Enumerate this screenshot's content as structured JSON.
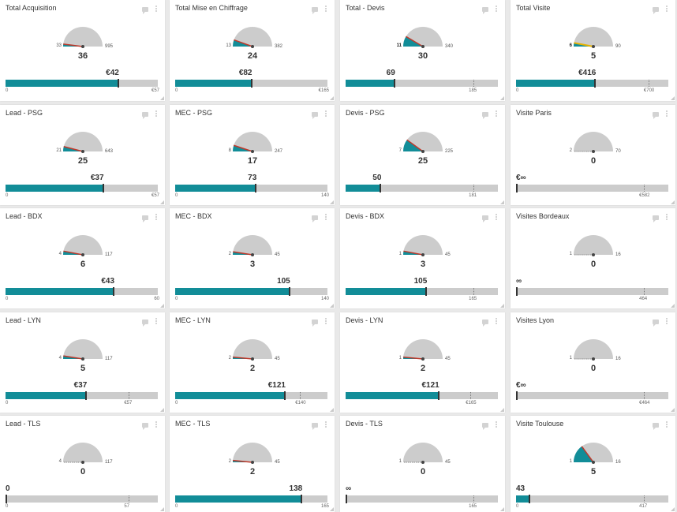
{
  "colors": {
    "teal": "#128d98",
    "gauge_grey": "#cccccc",
    "needle_red": "#c0392b",
    "yellow": "#e8b200"
  },
  "cards": [
    {
      "title": "Total Acquisition",
      "gauge": {
        "min": "33",
        "max": "995",
        "value": "36",
        "level": 0.04,
        "needle": "red"
      },
      "bar": {
        "value": "€42",
        "min": "0",
        "max": "€57",
        "fill": 0.74
      }
    },
    {
      "title": "Total Mise en Chiffrage",
      "gauge": {
        "min": "13",
        "max": "382",
        "value": "24",
        "level": 0.11,
        "needle": "red"
      },
      "bar": {
        "value": "€82",
        "min": "0",
        "max": "€165",
        "fill": 0.5
      }
    },
    {
      "title": "Total - Devis",
      "gauge": {
        "min": "11",
        "max": "340",
        "value": "30",
        "level": 0.17,
        "needle": "red",
        "min_bold": true
      },
      "bar": {
        "value": "69",
        "min": "",
        "max": "185",
        "fill": 0.32,
        "target": 0.84
      }
    },
    {
      "title": "Total Visite",
      "gauge": {
        "min": "6",
        "max": "90",
        "value": "5",
        "level": 0.06,
        "needle": "yellow",
        "min_bold": true
      },
      "bar": {
        "value": "€416",
        "min": "0",
        "max": "€700",
        "fill": 0.52,
        "target": 0.87
      }
    },
    {
      "title": "Lead - PSG",
      "gauge": {
        "min": "21",
        "max": "643",
        "value": "25",
        "level": 0.08,
        "needle": "red"
      },
      "bar": {
        "value": "€37",
        "min": "0",
        "max": "€57",
        "fill": 0.64
      }
    },
    {
      "title": "MEC - PSG",
      "gauge": {
        "min": "8",
        "max": "247",
        "value": "17",
        "level": 0.1,
        "needle": "red"
      },
      "bar": {
        "value": "73",
        "min": "0",
        "max": "140",
        "fill": 0.53
      }
    },
    {
      "title": "Devis - PSG",
      "gauge": {
        "min": "7",
        "max": "225",
        "value": "25",
        "level": 0.2,
        "needle": "red"
      },
      "bar": {
        "value": "50",
        "min": "",
        "max": "181",
        "fill": 0.23,
        "target": 0.84
      }
    },
    {
      "title": "Visite Paris",
      "gauge": {
        "min": "2",
        "max": "70",
        "value": "0",
        "level": 0.0,
        "needle": "dash"
      },
      "bar": {
        "value": "€∞",
        "min": "",
        "max": "€582",
        "fill": 0.0,
        "target": 0.84
      }
    },
    {
      "title": "Lead - BDX",
      "gauge": {
        "min": "4",
        "max": "117",
        "value": "6",
        "level": 0.06,
        "needle": "red"
      },
      "bar": {
        "value": "€43",
        "min": "0",
        "max": "60",
        "fill": 0.71
      }
    },
    {
      "title": "MEC - BDX",
      "gauge": {
        "min": "2",
        "max": "45",
        "value": "3",
        "level": 0.05,
        "needle": "red"
      },
      "bar": {
        "value": "105",
        "min": "0",
        "max": "140",
        "fill": 0.75
      }
    },
    {
      "title": "Devis - BDX",
      "gauge": {
        "min": "1",
        "max": "45",
        "value": "3",
        "level": 0.06,
        "needle": "red"
      },
      "bar": {
        "value": "105",
        "min": "",
        "max": "165",
        "fill": 0.53,
        "target": 0.84
      }
    },
    {
      "title": "Visites Bordeaux",
      "gauge": {
        "min": "1",
        "max": "16",
        "value": "0",
        "level": 0.0,
        "needle": "dash"
      },
      "bar": {
        "value": "∞",
        "min": "",
        "max": "464",
        "fill": 0.0,
        "target": 0.84
      }
    },
    {
      "title": "Lead - LYN",
      "gauge": {
        "min": "4",
        "max": "117",
        "value": "5",
        "level": 0.05,
        "needle": "red"
      },
      "bar": {
        "value": "€37",
        "min": "0",
        "max": "€57",
        "fill": 0.53,
        "target": 0.81
      }
    },
    {
      "title": "MEC - LYN",
      "gauge": {
        "min": "2",
        "max": "45",
        "value": "2",
        "level": 0.03,
        "needle": "red"
      },
      "bar": {
        "value": "€121",
        "min": "0",
        "max": "€140",
        "fill": 0.72,
        "target": 0.82
      }
    },
    {
      "title": "Devis - LYN",
      "gauge": {
        "min": "1",
        "max": "45",
        "value": "2",
        "level": 0.03,
        "needle": "red"
      },
      "bar": {
        "value": "€121",
        "min": "",
        "max": "€165",
        "fill": 0.61,
        "target": 0.82
      }
    },
    {
      "title": "Visites Lyon",
      "gauge": {
        "min": "1",
        "max": "16",
        "value": "0",
        "level": 0.0,
        "needle": "dash"
      },
      "bar": {
        "value": "€∞",
        "min": "",
        "max": "€464",
        "fill": 0.0,
        "target": 0.84
      }
    },
    {
      "title": "Lead - TLS",
      "gauge": {
        "min": "4",
        "max": "117",
        "value": "0",
        "level": 0.0,
        "needle": "dash"
      },
      "bar": {
        "value": "0",
        "min": "0",
        "max": "57",
        "fill": 0.0,
        "target": 0.81
      }
    },
    {
      "title": "MEC - TLS",
      "gauge": {
        "min": "2",
        "max": "45",
        "value": "2",
        "level": 0.03,
        "needle": "red"
      },
      "bar": {
        "value": "138",
        "min": "0",
        "max": "165",
        "fill": 0.83
      }
    },
    {
      "title": "Devis - TLS",
      "gauge": {
        "min": "1",
        "max": "45",
        "value": "0",
        "level": 0.0,
        "needle": "dash"
      },
      "bar": {
        "value": "∞",
        "min": "",
        "max": "165",
        "fill": 0.0,
        "target": 0.84
      }
    },
    {
      "title": "Visite Toulouse",
      "gauge": {
        "min": "1",
        "max": "16",
        "value": "5",
        "level": 0.3,
        "needle": "red",
        "filled": true
      },
      "bar": {
        "value": "43",
        "min": "0",
        "max": "417",
        "fill": 0.09,
        "target": 0.84
      }
    }
  ]
}
